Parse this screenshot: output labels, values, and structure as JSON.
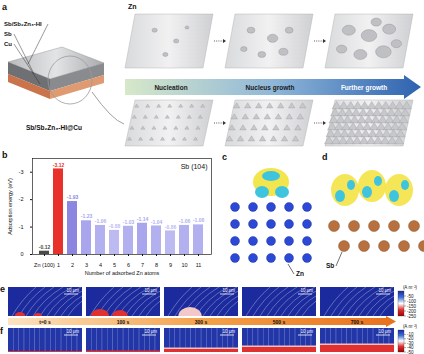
{
  "panels": {
    "a": {
      "letter": "a",
      "top_row_label": "Zn",
      "layer_labels": [
        "Sb/Sb₂Zn₃-HI",
        "Sb",
        "Cu"
      ],
      "electrode_label": "Sb/Sb₂Zn₃-HI@Cu",
      "stages": [
        "Nucleation",
        "Nucleus growth",
        "Further growth"
      ]
    },
    "b": {
      "letter": "b"
    },
    "c": {
      "letter": "c",
      "atom_label": "Zn"
    },
    "d": {
      "letter": "d",
      "atom_label": "Sb"
    },
    "e": {
      "letter": "e",
      "scale_bar": "10 μm",
      "colorbar": {
        "label": "(A m⁻²)",
        "range": [
          0,
          -250
        ],
        "ticks": [
          -50,
          -100,
          -150,
          -200,
          -250
        ]
      }
    },
    "f": {
      "letter": "f",
      "scale_bar": "10 μm",
      "colorbar": {
        "label": "(A m⁻²)",
        "range": [
          0,
          -50
        ],
        "ticks": [
          -10,
          -20,
          -30,
          -40,
          -50
        ]
      }
    },
    "time_labels": [
      "t=0 s",
      "100 s",
      "300 s",
      "500 s",
      "700 s"
    ]
  },
  "chart_data": {
    "type": "bar",
    "annotation": "Sb (104)",
    "x_label": "Number of adsorbed Zn atoms",
    "y_label": "Adsorption energy (eV)",
    "categories": [
      "Zn (100)",
      "1",
      "2",
      "3",
      "4",
      "5",
      "6",
      "7",
      "8",
      "9",
      "10",
      "11"
    ],
    "values": [
      -0.12,
      -3.12,
      -1.93,
      -1.23,
      -1.06,
      -0.88,
      -1.03,
      -1.14,
      -1.04,
      -0.86,
      -1.06,
      -1.08
    ],
    "colors": [
      "#4a4a4a",
      "#e8312a",
      "#8c86e0",
      "#a9a6ee",
      "#b3b0f0",
      "#bdbaf2",
      "#b3b0f0",
      "#a9a6ee",
      "#b3b0f0",
      "#bdbaf2",
      "#b3b0f0",
      "#b3b0f0"
    ],
    "ylim": [
      0,
      -3.5
    ],
    "yticks": [
      0,
      -1,
      -2,
      -3
    ],
    "grid": false,
    "data_labels": true
  }
}
